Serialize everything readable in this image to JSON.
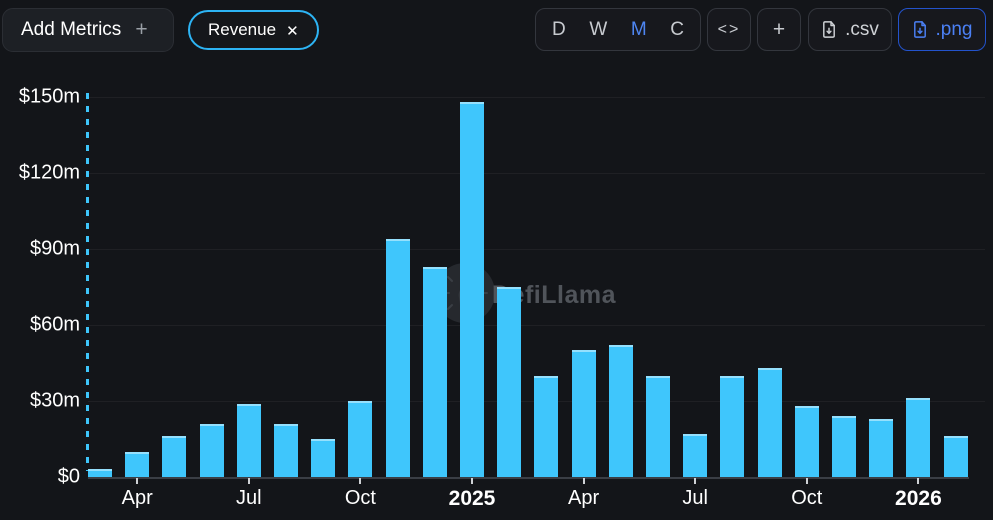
{
  "header": {
    "add_metrics": {
      "label": "Add Metrics",
      "plus": "+"
    },
    "metric_pill": {
      "label": "Revenue",
      "close": "✕"
    },
    "interval_group": {
      "options": [
        "D",
        "W",
        "M",
        "C"
      ],
      "selected": "M"
    },
    "embed_label": "<>",
    "add_chart_label": "+",
    "csv_label": ".csv",
    "png_label": ".png"
  },
  "watermark": {
    "text": "DefiLlama"
  },
  "colors": {
    "background": "#131519",
    "bar": "#3fc6fc",
    "pill_border": "#2db4f4",
    "active_interval": "#4e85f1",
    "png_accent": "#4b80f5",
    "axis_text": "#ffffff",
    "watermark_text": "#50545a"
  },
  "chart_data": {
    "type": "bar",
    "title": "Revenue",
    "unit": "USD millions",
    "categories": [
      "Mar 2024",
      "Apr 2024",
      "May 2024",
      "Jun 2024",
      "Jul 2024",
      "Aug 2024",
      "Sep 2024",
      "Oct 2024",
      "Nov 2024",
      "Dec 2024",
      "Jan 2025",
      "Feb 2025",
      "Mar 2025",
      "Apr 2025",
      "May 2025",
      "Jun 2025",
      "Jul 2025",
      "Aug 2025",
      "Sep 2025",
      "Oct 2025",
      "Nov 2025",
      "Dec 2025",
      "Jan 2026",
      "Feb 2026"
    ],
    "values": [
      3,
      10,
      16,
      21,
      29,
      21,
      15,
      30,
      94,
      83,
      148,
      75,
      40,
      50,
      52,
      40,
      17,
      40,
      43,
      28,
      24,
      23,
      31,
      16
    ],
    "ylim": [
      0,
      150
    ],
    "grid": true,
    "legend": "none",
    "yticks": [
      {
        "label": "$150m",
        "value": 150
      },
      {
        "label": "$120m",
        "value": 120
      },
      {
        "label": "$90m",
        "value": 90
      },
      {
        "label": "$60m",
        "value": 60
      },
      {
        "label": "$30m",
        "value": 30
      },
      {
        "label": "$0",
        "value": 0
      }
    ],
    "xticks": [
      {
        "index": 1,
        "label": "Apr",
        "bold": false
      },
      {
        "index": 4,
        "label": "Jul",
        "bold": false
      },
      {
        "index": 7,
        "label": "Oct",
        "bold": false
      },
      {
        "index": 10,
        "label": "2025",
        "bold": true
      },
      {
        "index": 13,
        "label": "Apr",
        "bold": false
      },
      {
        "index": 16,
        "label": "Jul",
        "bold": false
      },
      {
        "index": 19,
        "label": "Oct",
        "bold": false
      },
      {
        "index": 22,
        "label": "2026",
        "bold": true
      }
    ]
  }
}
